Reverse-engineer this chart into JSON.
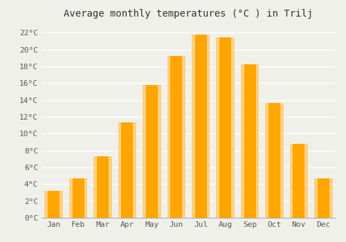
{
  "title": "Average monthly temperatures (°C ) in Trilj",
  "months": [
    "Jan",
    "Feb",
    "Mar",
    "Apr",
    "May",
    "Jun",
    "Jul",
    "Aug",
    "Sep",
    "Oct",
    "Nov",
    "Dec"
  ],
  "values": [
    3.2,
    4.7,
    7.3,
    11.3,
    15.8,
    19.2,
    21.8,
    21.4,
    18.2,
    13.6,
    8.8,
    4.7
  ],
  "bar_color": "#FFA500",
  "bar_edge_color": "#FFB733",
  "background_color": "#F0F0EB",
  "grid_color": "#FFFFFF",
  "ylim": [
    0,
    23
  ],
  "ytick_step": 2,
  "title_fontsize": 10,
  "tick_fontsize": 8,
  "font_family": "monospace",
  "bar_width": 0.75
}
